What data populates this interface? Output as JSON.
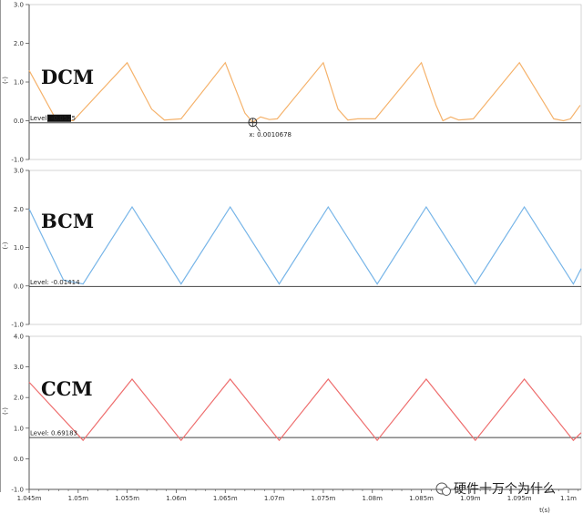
{
  "colors": {
    "dcm": "#f5b26b",
    "bcm": "#77b5e8",
    "ccm": "#ee6e6e",
    "axis": "#555555",
    "level": "#444444"
  },
  "watermark": "硬件十万个为什么",
  "chart_data": [
    {
      "type": "line",
      "title": "DCM",
      "ylabel": "(-)",
      "ylim": [
        -1.0,
        3.0
      ],
      "yticks": [
        "3.0",
        "2.0",
        "1.0",
        "0.0",
        "-1.0"
      ],
      "level_label": "Level: -0.0525",
      "level_value": -0.0525,
      "cursor_label": "x: 0.0010678",
      "cursor_x": 1.0678,
      "series": [
        {
          "x": [
            1.045,
            1.0477,
            1.0495,
            1.055,
            1.0575,
            1.0588,
            1.0605,
            1.065,
            1.067,
            1.0678,
            1.0686,
            1.0695,
            1.0703,
            1.075,
            1.0765,
            1.0775,
            1.0785,
            1.0803,
            1.085,
            1.0865,
            1.0872,
            1.088,
            1.0888,
            1.0903,
            1.095,
            1.0985,
            1.0995,
            1.1002,
            1.1012
          ],
          "y": [
            1.3,
            0.05,
            0.0,
            1.5,
            0.3,
            0.02,
            0.05,
            1.5,
            0.2,
            -0.04,
            0.1,
            0.03,
            0.05,
            1.5,
            0.3,
            0.02,
            0.05,
            0.05,
            1.5,
            0.4,
            0.0,
            0.1,
            0.02,
            0.05,
            1.5,
            0.05,
            0.0,
            0.05,
            0.4
          ]
        }
      ]
    },
    {
      "type": "line",
      "title": "BCM",
      "ylabel": "(-)",
      "ylim": [
        -1.0,
        3.0
      ],
      "yticks": [
        "3.0",
        "2.0",
        "1.0",
        "0.0",
        "-1.0"
      ],
      "level_label": "Level: -0.01414",
      "level_value": -0.01414,
      "series": [
        {
          "x": [
            1.045,
            1.0485,
            1.0505,
            1.0555,
            1.0605,
            1.0655,
            1.0705,
            1.0755,
            1.0805,
            1.0855,
            1.0905,
            1.0955,
            1.1005,
            1.1013
          ],
          "y": [
            2.0,
            0.15,
            0.05,
            2.05,
            0.05,
            2.05,
            0.05,
            2.05,
            0.05,
            2.05,
            0.05,
            2.05,
            0.05,
            0.45
          ]
        }
      ]
    },
    {
      "type": "line",
      "title": "CCM",
      "ylabel": "(-)",
      "ylim": [
        -1.0,
        4.0
      ],
      "yticks": [
        "4.0",
        "3.0",
        "2.0",
        "1.0",
        "0.0",
        "-1.0"
      ],
      "level_label": "Level: 0.69183",
      "level_value": 0.69183,
      "xlabel": "t(s)",
      "xticks": [
        "1.045m",
        "1.05m",
        "1.055m",
        "1.06m",
        "1.065m",
        "1.07m",
        "1.075m",
        "1.08m",
        "1.085m",
        "1.09m",
        "1.095m",
        "1.1m"
      ],
      "series": [
        {
          "x": [
            1.045,
            1.0505,
            1.0555,
            1.0605,
            1.0655,
            1.0705,
            1.0755,
            1.0805,
            1.0855,
            1.0905,
            1.0955,
            1.1005,
            1.1013
          ],
          "y": [
            2.5,
            0.6,
            2.6,
            0.6,
            2.6,
            0.6,
            2.6,
            0.6,
            2.6,
            0.6,
            2.6,
            0.6,
            0.85
          ]
        }
      ]
    }
  ]
}
